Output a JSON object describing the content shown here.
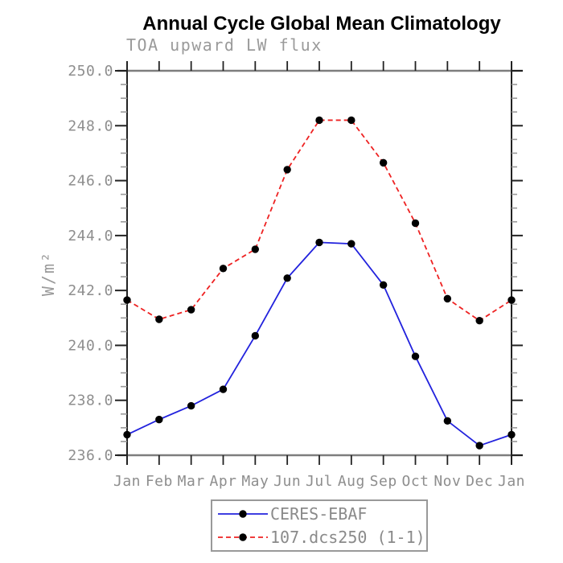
{
  "header": {
    "title": "Annual Cycle Global Mean Climatology",
    "subtitle": "TOA upward LW flux"
  },
  "chart_data": {
    "type": "line",
    "title": "Annual Cycle Global Mean Climatology",
    "subtitle": "TOA upward LW flux",
    "ylabel": "W/m²",
    "xlabel": "",
    "categories": [
      "Jan",
      "Feb",
      "Mar",
      "Apr",
      "May",
      "Jun",
      "Jul",
      "Aug",
      "Sep",
      "Oct",
      "Nov",
      "Dec",
      "Jan"
    ],
    "ylim": [
      236.0,
      250.0
    ],
    "ytick_step": 2.0,
    "ytick_minor_step": 0.5,
    "ytick_labels": [
      "236.0",
      "238.0",
      "240.0",
      "242.0",
      "244.0",
      "246.0",
      "248.0",
      "250.0"
    ],
    "grid": false,
    "legend_position": "bottom-center",
    "series": [
      {
        "name": "CERES-EBAF",
        "line_style": "solid",
        "color": "#2222dd",
        "marker": "filled-circle",
        "marker_color": "#000000",
        "values": [
          236.75,
          237.3,
          237.8,
          238.4,
          240.35,
          242.45,
          243.75,
          243.7,
          242.2,
          239.6,
          237.25,
          236.35,
          236.75
        ]
      },
      {
        "name": "107.dcs250 (1-1)",
        "line_style": "dashed",
        "color": "#ee2222",
        "marker": "filled-circle",
        "marker_color": "#000000",
        "values": [
          241.65,
          240.95,
          241.3,
          242.8,
          243.5,
          246.4,
          248.2,
          248.2,
          246.65,
          244.45,
          241.7,
          240.9,
          241.65
        ]
      }
    ]
  },
  "palette": {
    "title_text": "#000000",
    "label_gray": "#8e8e8e",
    "axis_dark": "#222222",
    "frame_gray": "#7d7d7d",
    "minor_tick_gray": "#999999",
    "legend_border": "#999999"
  }
}
